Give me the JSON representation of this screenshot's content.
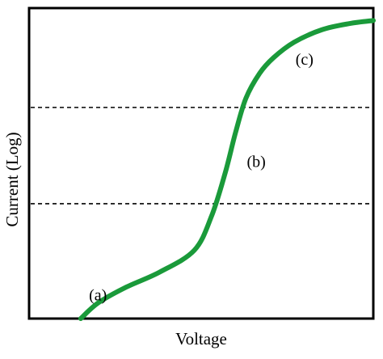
{
  "chart_data": {
    "type": "line",
    "xlabel": "Voltage",
    "ylabel": "Current (Log)",
    "xlim": [
      0,
      1
    ],
    "ylim": [
      0,
      1
    ],
    "grid": false,
    "series": [
      {
        "color": "#1a9a3a",
        "x": [
          0.15,
          0.2,
          0.28,
          0.38,
          0.48,
          0.53,
          0.57,
          0.6,
          0.63,
          0.67,
          0.71,
          0.77,
          0.85,
          0.93,
          1.0
        ],
        "y": [
          0.0,
          0.05,
          0.1,
          0.15,
          0.22,
          0.33,
          0.47,
          0.6,
          0.71,
          0.79,
          0.84,
          0.89,
          0.93,
          0.95,
          0.96
        ]
      }
    ],
    "reference_lines": [
      {
        "axis": "y",
        "value": 0.68,
        "style": "dashed"
      },
      {
        "axis": "y",
        "value": 0.37,
        "style": "dashed"
      }
    ],
    "annotations": [
      {
        "text": "(a)",
        "x": 0.2,
        "y": 0.07
      },
      {
        "text": "(b)",
        "x": 0.66,
        "y": 0.5
      },
      {
        "text": "(c)",
        "x": 0.8,
        "y": 0.83
      }
    ],
    "colors": {
      "curve": "#1a9a3a",
      "axes": "#000000"
    }
  }
}
